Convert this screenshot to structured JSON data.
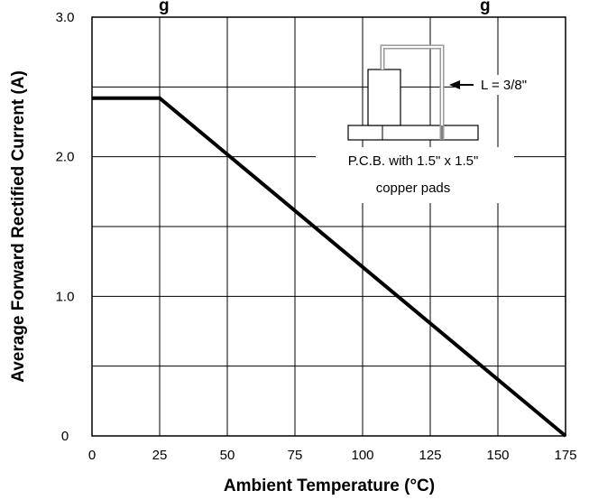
{
  "chart_data": {
    "type": "line",
    "title_visible_fragment": "g                                    g",
    "xlabel": "Ambient Temperature (°C)",
    "ylabel": "Average Forward Rectified Current (A)",
    "xlim": [
      0,
      175
    ],
    "ylim": [
      0,
      3.0
    ],
    "x_ticks": [
      0,
      25,
      50,
      75,
      100,
      125,
      150,
      175
    ],
    "y_ticks": [
      "0",
      "1.0",
      "2.0",
      "3.0"
    ],
    "x_tick_labels": [
      "0",
      "25",
      "50",
      "75",
      "100",
      "125",
      "150",
      "175"
    ],
    "grid": true,
    "series": [
      {
        "x": [
          0,
          25,
          175
        ],
        "y": [
          2.42,
          2.42,
          0
        ]
      }
    ],
    "annotations": {
      "lead_length": "L = 3/8\"",
      "pcb_line1": "P.C.B. with 1.5\" x 1.5\"",
      "pcb_line2": "copper pads"
    }
  }
}
